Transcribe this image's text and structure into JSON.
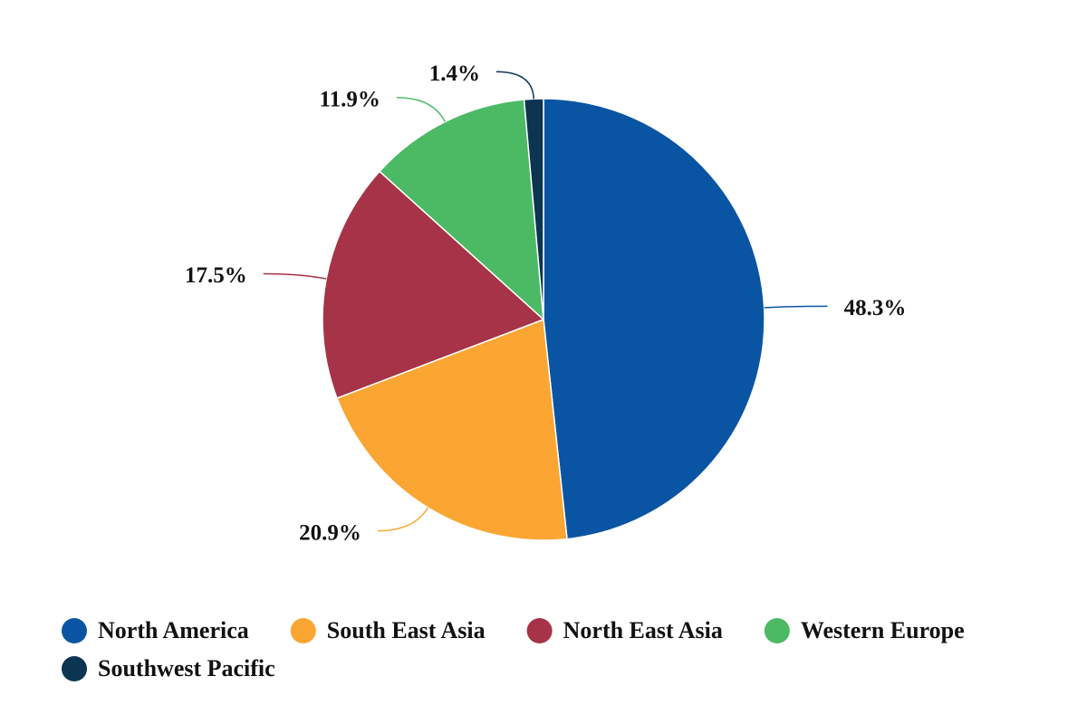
{
  "chart_data": {
    "type": "pie",
    "categories": [
      "North America",
      "South East Asia",
      "North East Asia",
      "Western Europe",
      "Southwest Pacific"
    ],
    "values": [
      48.3,
      20.9,
      17.5,
      11.9,
      1.4
    ],
    "value_labels": [
      "48.3%",
      "20.9%",
      "17.5%",
      "11.9%",
      "1.4%"
    ],
    "colors": [
      "#0a55a3",
      "#fba533",
      "#a63347",
      "#4cba64",
      "#0b3551"
    ]
  }
}
